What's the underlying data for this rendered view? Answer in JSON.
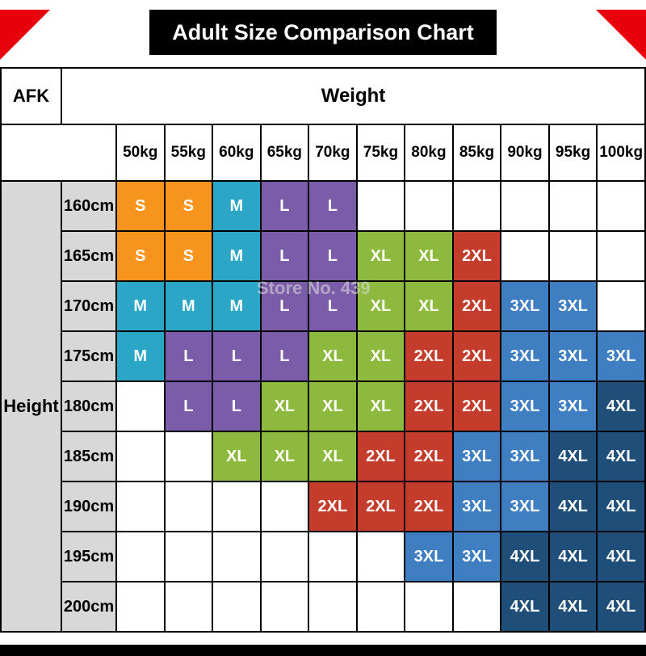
{
  "page": {
    "title": "Adult Size Comparison Chart",
    "corner_label": "AFK",
    "weight_label": "Weight",
    "height_label": "Height",
    "watermark": "Store No. 439"
  },
  "colors": {
    "S": "#F7941E",
    "M": "#2BA6C6",
    "L": "#7A5CA8",
    "XL": "#8DB93F",
    "2XL": "#C43C2C",
    "3XL": "#3E7EC1",
    "4XL": "#1F4E79",
    "title_bar_bg": "#000000",
    "corner_triangle": "#E8000D",
    "header_gray_bg": "#D8D8D8"
  },
  "chart_data": {
    "type": "table",
    "title": "Adult Size Comparison Chart",
    "x_label": "Weight",
    "y_label": "Height",
    "columns": [
      "50kg",
      "55kg",
      "60kg",
      "65kg",
      "70kg",
      "75kg",
      "80kg",
      "85kg",
      "90kg",
      "95kg",
      "100kg"
    ],
    "rows": [
      "160cm",
      "165cm",
      "170cm",
      "175cm",
      "180cm",
      "185cm",
      "190cm",
      "195cm",
      "200cm"
    ],
    "cells": [
      [
        "S",
        "S",
        "M",
        "L",
        "L",
        "",
        "",
        "",
        "",
        "",
        ""
      ],
      [
        "S",
        "S",
        "M",
        "L",
        "L",
        "XL",
        "XL",
        "2XL",
        "",
        "",
        ""
      ],
      [
        "M",
        "M",
        "M",
        "L",
        "L",
        "XL",
        "XL",
        "2XL",
        "3XL",
        "3XL",
        ""
      ],
      [
        "M",
        "L",
        "L",
        "L",
        "XL",
        "XL",
        "2XL",
        "2XL",
        "3XL",
        "3XL",
        "3XL"
      ],
      [
        "",
        "L",
        "L",
        "XL",
        "XL",
        "XL",
        "2XL",
        "2XL",
        "3XL",
        "3XL",
        "4XL"
      ],
      [
        "",
        "",
        "XL",
        "XL",
        "XL",
        "2XL",
        "2XL",
        "3XL",
        "3XL",
        "4XL",
        "4XL"
      ],
      [
        "",
        "",
        "",
        "",
        "2XL",
        "2XL",
        "2XL",
        "3XL",
        "3XL",
        "4XL",
        "4XL"
      ],
      [
        "",
        "",
        "",
        "",
        "",
        "",
        "3XL",
        "3XL",
        "4XL",
        "4XL",
        "4XL"
      ],
      [
        "",
        "",
        "",
        "",
        "",
        "",
        "",
        "",
        "4XL",
        "4XL",
        "4XL"
      ]
    ],
    "legend": [
      "S",
      "M",
      "L",
      "XL",
      "2XL",
      "3XL",
      "4XL"
    ]
  }
}
